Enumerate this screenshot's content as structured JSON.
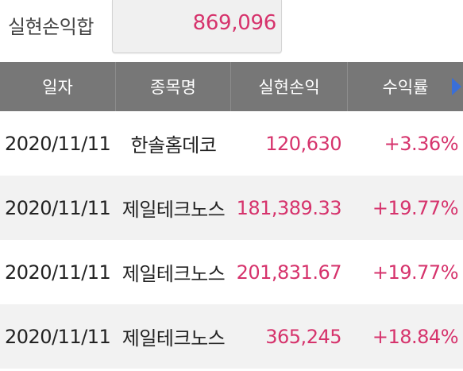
{
  "summary": {
    "label": "실현손익합",
    "value": "869,096"
  },
  "table": {
    "headers": [
      "일자",
      "종목명",
      "실현손익",
      "수익률"
    ],
    "rows": [
      {
        "date": "2020/11/11",
        "name": "한솔홈데코",
        "profit": "120,630",
        "rate": "+3.36%"
      },
      {
        "date": "2020/11/11",
        "name": "제일테크노스",
        "profit": "181,389.33",
        "rate": "+19.77%"
      },
      {
        "date": "2020/11/11",
        "name": "제일테크노스",
        "profit": "201,831.67",
        "rate": "+19.77%"
      },
      {
        "date": "2020/11/11",
        "name": "제일테크노스",
        "profit": "365,245",
        "rate": "+18.84%"
      }
    ]
  },
  "colors": {
    "accent_red": "#d6336c",
    "header_bg": "#777777",
    "arrow_blue": "#3a6fd8"
  },
  "icons": {
    "next_columns": "chevron-right-icon"
  }
}
